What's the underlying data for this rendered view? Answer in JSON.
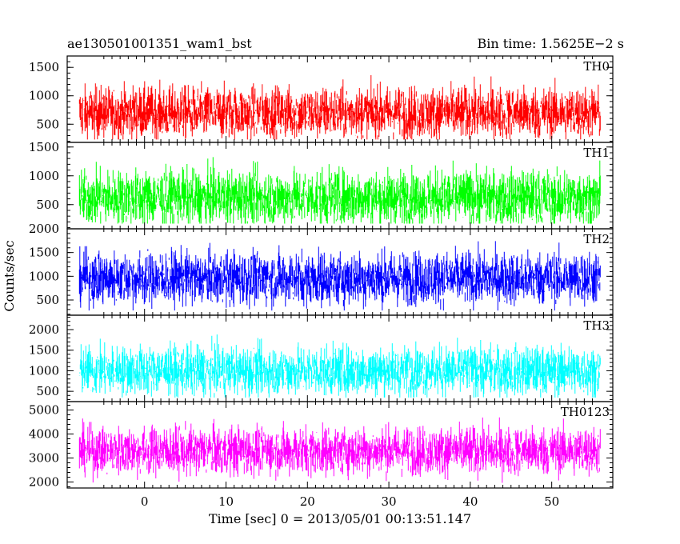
{
  "header": {
    "left_title": "ae130501001351_wam1_bst",
    "right_title": "Bin time: 1.5625E−2 s"
  },
  "chart_data": {
    "type": "line",
    "ylabel": "Counts/sec",
    "xlabel": "Time [sec] 0 = 2013/05/01 00:13:51.147",
    "xlim": [
      -9.5,
      57.5
    ],
    "data_x_range": [
      -8,
      56
    ],
    "bin_time_sec": 0.015625,
    "x_ticks": [
      0,
      10,
      20,
      30,
      40,
      50
    ],
    "grid": false,
    "panels": [
      {
        "name": "TH0",
        "color": "#ff0000",
        "ylim": [
          180,
          1700
        ],
        "yticks": [
          500,
          1000,
          1500
        ],
        "mean": 700,
        "spread": 230,
        "min": 230,
        "max": 1700
      },
      {
        "name": "TH1",
        "color": "#00ff00",
        "ylim": [
          80,
          1580
        ],
        "yticks": [
          500,
          1000,
          1500
        ],
        "mean": 620,
        "spread": 240,
        "min": 170,
        "max": 1580
      },
      {
        "name": "TH2",
        "color": "#0000ff",
        "ylim": [
          180,
          2000
        ],
        "yticks": [
          500,
          1000,
          1500,
          2000
        ],
        "mean": 960,
        "spread": 280,
        "min": 280,
        "max": 2000
      },
      {
        "name": "TH3",
        "color": "#00ffff",
        "ylim": [
          250,
          2350
        ],
        "yticks": [
          500,
          1000,
          1500,
          2000
        ],
        "mean": 1000,
        "spread": 300,
        "min": 350,
        "max": 2350
      },
      {
        "name": "TH0123",
        "color": "#ff00ff",
        "ylim": [
          1750,
          5350
        ],
        "yticks": [
          2000,
          3000,
          4000,
          5000
        ],
        "mean": 3300,
        "spread": 500,
        "min": 1750,
        "max": 5350
      }
    ]
  }
}
